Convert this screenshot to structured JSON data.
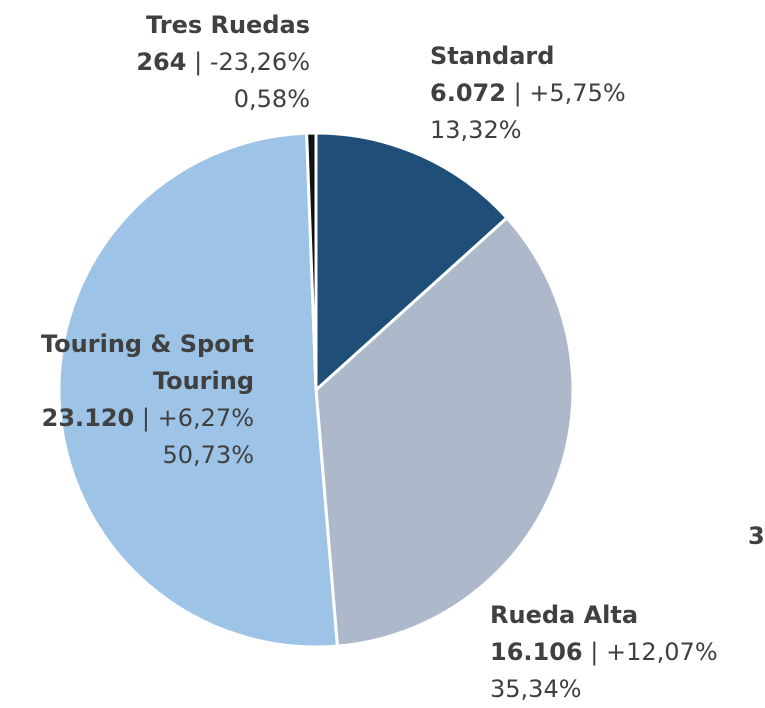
{
  "chart_data": {
    "type": "pie",
    "categories": [
      "Standard",
      "Rueda Alta",
      "Touring & Sport Touring",
      "Tres Ruedas"
    ],
    "values": [
      13.32,
      35.34,
      50.73,
      0.58
    ],
    "value_labels": [
      "13,32%",
      "35,34%",
      "50,73%",
      "0,58%"
    ],
    "counts": [
      6072,
      16106,
      23120,
      264
    ],
    "count_labels": [
      "6.072",
      "16.106",
      "23.120",
      "264"
    ],
    "changes": [
      5.75,
      12.07,
      6.27,
      -23.26
    ],
    "change_labels": [
      "+5,75%",
      "+12,07%",
      "+6,27%",
      "-23,26%"
    ],
    "separator": "|",
    "colors": [
      "#1f4e79",
      "#adb9ca",
      "#9dc3e6",
      "#111111"
    ],
    "side_text": "3"
  }
}
